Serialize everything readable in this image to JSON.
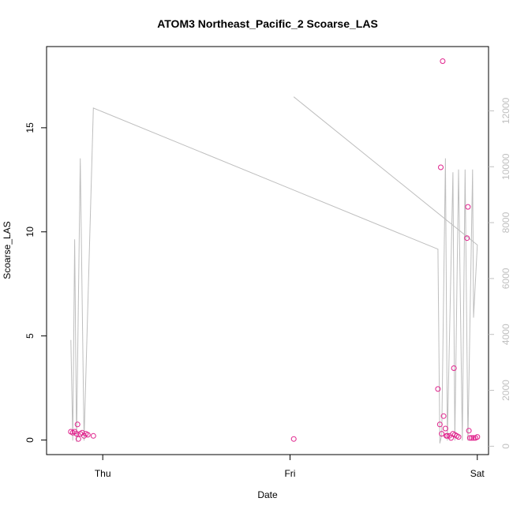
{
  "chart_data": {
    "type": "scatter",
    "title": "ATOM3 Northeast_Pacific_2 Scoarse_LAS",
    "xlabel": "Date",
    "ylabel": "Scoarse_LAS",
    "x_ticks": [
      {
        "label": "Thu",
        "value": 0
      },
      {
        "label": "Fri",
        "value": 1
      },
      {
        "label": "Sat",
        "value": 2
      }
    ],
    "xlim": [
      -0.3,
      2.06
    ],
    "ylim": [
      -0.7,
      18.9
    ],
    "y_ticks": [
      0,
      5,
      10,
      15
    ],
    "y2lim": [
      -300,
      14300
    ],
    "y2_ticks": [
      0,
      2000,
      4000,
      6000,
      8000,
      10000,
      12000
    ],
    "colors": {
      "points": "#e0228c",
      "line": "#bebebe",
      "axis": "#000000",
      "right_axis": "#c0c0c0"
    },
    "series": [
      {
        "axis": "left",
        "style": "points",
        "points": [
          {
            "x": -0.17,
            "y": 0.4
          },
          {
            "x": -0.16,
            "y": 0.35
          },
          {
            "x": -0.15,
            "y": 0.4
          },
          {
            "x": -0.14,
            "y": 0.3
          },
          {
            "x": -0.135,
            "y": 0.75
          },
          {
            "x": -0.13,
            "y": 0.05
          },
          {
            "x": -0.12,
            "y": 0.3
          },
          {
            "x": -0.11,
            "y": 0.35
          },
          {
            "x": -0.1,
            "y": 0.2
          },
          {
            "x": -0.09,
            "y": 0.3
          },
          {
            "x": -0.08,
            "y": 0.25
          },
          {
            "x": -0.05,
            "y": 0.2
          },
          {
            "x": 1.02,
            "y": 0.05
          },
          {
            "x": 1.79,
            "y": 2.45
          },
          {
            "x": 1.8,
            "y": 0.75
          },
          {
            "x": 1.805,
            "y": 13.1
          },
          {
            "x": 1.81,
            "y": 0.3
          },
          {
            "x": 1.815,
            "y": 18.2
          },
          {
            "x": 1.82,
            "y": 1.15
          },
          {
            "x": 1.83,
            "y": 0.55
          },
          {
            "x": 1.835,
            "y": 0.2
          },
          {
            "x": 1.84,
            "y": 0.2
          },
          {
            "x": 1.85,
            "y": 0.2
          },
          {
            "x": 1.86,
            "y": 0.1
          },
          {
            "x": 1.87,
            "y": 0.3
          },
          {
            "x": 1.875,
            "y": 3.45
          },
          {
            "x": 1.88,
            "y": 0.25
          },
          {
            "x": 1.89,
            "y": 0.2
          },
          {
            "x": 1.9,
            "y": 0.15
          },
          {
            "x": 1.945,
            "y": 9.7
          },
          {
            "x": 1.95,
            "y": 11.2
          },
          {
            "x": 1.955,
            "y": 0.45
          },
          {
            "x": 1.96,
            "y": 0.1
          },
          {
            "x": 1.97,
            "y": 0.1
          },
          {
            "x": 1.98,
            "y": 0.1
          },
          {
            "x": 1.99,
            "y": 0.1
          },
          {
            "x": 2.0,
            "y": 0.15
          }
        ]
      },
      {
        "axis": "right",
        "style": "line",
        "points": [
          {
            "x": -0.17,
            "y": 3800
          },
          {
            "x": -0.16,
            "y": 200
          },
          {
            "x": -0.15,
            "y": 7400
          },
          {
            "x": -0.14,
            "y": 150
          },
          {
            "x": -0.12,
            "y": 10300
          },
          {
            "x": -0.1,
            "y": 200
          },
          {
            "x": -0.05,
            "y": 12100
          },
          {
            "x": 1.79,
            "y": 7050
          },
          {
            "x": 1.8,
            "y": 100
          },
          {
            "x": 1.81,
            "y": 400
          },
          {
            "x": 1.83,
            "y": 10300
          },
          {
            "x": 1.84,
            "y": 200
          },
          {
            "x": 1.87,
            "y": 9800
          },
          {
            "x": 1.88,
            "y": 200
          },
          {
            "x": 1.9,
            "y": 9900
          },
          {
            "x": 1.92,
            "y": 200
          },
          {
            "x": 1.935,
            "y": 9900
          },
          {
            "x": 1.95,
            "y": 200
          },
          {
            "x": 1.975,
            "y": 9900
          },
          {
            "x": 1.98,
            "y": 4600
          },
          {
            "x": 2.0,
            "y": 7200
          },
          {
            "x": 1.02,
            "y": 12500
          },
          {
            "x": 2.0,
            "y": 7200
          }
        ]
      }
    ]
  }
}
